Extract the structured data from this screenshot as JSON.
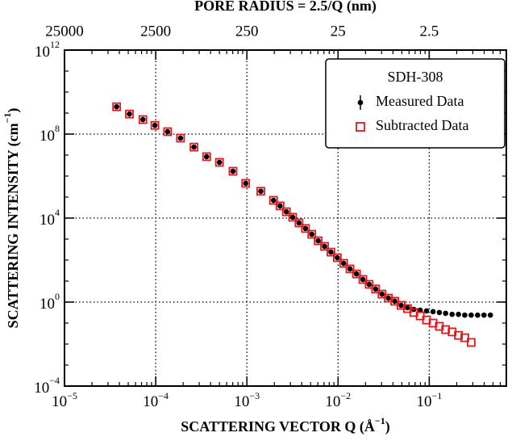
{
  "chart_data": {
    "type": "scatter",
    "title": "PORE RADIUS = 2.5/Q (nm)",
    "xlabel": [
      "SCATTERING VECTOR Q (Å",
      "−1",
      ")"
    ],
    "ylabel": [
      "SCATTERING INTENSITY (cm",
      "−1",
      ")"
    ],
    "xscale": "log",
    "yscale": "log",
    "grid": true,
    "legend": "upper right",
    "legend_title": "SDH-308",
    "xlim": [
      1e-05,
      0.7
    ],
    "xticks": [
      {
        "value": 1e-05,
        "label": "10",
        "sup": "−5"
      },
      {
        "value": 0.0001,
        "label": "10",
        "sup": "−4"
      },
      {
        "value": 0.001,
        "label": "10",
        "sup": "−3"
      },
      {
        "value": 0.01,
        "label": "10",
        "sup": "−2"
      },
      {
        "value": 0.1,
        "label": "10",
        "sup": "−1"
      }
    ],
    "x2lim": [
      25000,
      0.357
    ],
    "x2ticks": [
      25000,
      2500,
      250,
      25,
      2.5
    ],
    "ylim": [
      0.0001,
      1000000000000
    ],
    "yticks": [
      {
        "value": 0.0001,
        "label": "10",
        "sup": "−4"
      },
      {
        "value": 1,
        "label": "10",
        "sup": "0"
      },
      {
        "value": 10000,
        "label": "10",
        "sup": "4"
      },
      {
        "value": 100000000,
        "label": "10",
        "sup": "8"
      },
      {
        "value": 1000000000000,
        "label": "10",
        "sup": "12"
      }
    ],
    "series": [
      {
        "name": "Measured Data",
        "color": "#000000",
        "marker": "dot",
        "x": [
          3.73e-05,
          5.15e-05,
          7.24e-05,
          9.8e-05,
          0.000135,
          0.000187,
          0.000263,
          0.000362,
          0.0005,
          0.000704,
          0.00097,
          0.00142,
          0.00196,
          0.00231,
          0.00271,
          0.00318,
          0.00373,
          0.00439,
          0.00515,
          0.00605,
          0.00711,
          0.00835,
          0.00981,
          0.0115,
          0.0135,
          0.0159,
          0.0187,
          0.0219,
          0.0258,
          0.0303,
          0.0356,
          0.0418,
          0.0491,
          0.0577,
          0.0678,
          0.0796,
          0.0934,
          0.11,
          0.129,
          0.151,
          0.178,
          0.209,
          0.245,
          0.288,
          0.339,
          0.398,
          0.468
        ],
        "values": [
          2000000000,
          900000000,
          490000000,
          260000000,
          130000000,
          64000000,
          24000000,
          8400000,
          4500000,
          1700000,
          450000,
          190000,
          70000,
          38000,
          20000,
          11000,
          5900,
          3200,
          1700,
          830,
          450,
          240,
          130,
          70,
          38,
          22,
          12,
          7,
          4.2,
          2.4,
          1.55,
          1.1,
          0.7,
          0.54,
          0.45,
          0.41,
          0.38,
          0.35,
          0.32,
          0.29,
          0.26,
          0.26,
          0.24,
          0.24,
          0.24,
          0.24,
          0.24
        ]
      },
      {
        "name": "Subtracted Data",
        "color": "#e8161b",
        "marker": "square",
        "x": [
          3.73e-05,
          5.15e-05,
          7.24e-05,
          9.8e-05,
          0.000135,
          0.000187,
          0.000263,
          0.000362,
          0.0005,
          0.000704,
          0.00097,
          0.00142,
          0.00196,
          0.00231,
          0.00271,
          0.00318,
          0.00373,
          0.00439,
          0.00515,
          0.00605,
          0.00711,
          0.00835,
          0.00981,
          0.0115,
          0.0135,
          0.0159,
          0.0187,
          0.0219,
          0.0258,
          0.0303,
          0.0356,
          0.0418,
          0.0491,
          0.0577,
          0.0678,
          0.0796,
          0.0934,
          0.11,
          0.129,
          0.151,
          0.178,
          0.209,
          0.245,
          0.288
        ],
        "values": [
          2000000000,
          900000000,
          490000000,
          260000000,
          130000000,
          64000000,
          24000000,
          8400000,
          4500000,
          1700000,
          450000,
          190000,
          70000,
          38000,
          20000,
          11000,
          5900,
          3200,
          1700,
          830,
          450,
          240,
          130,
          70,
          38,
          22,
          12,
          7,
          4.2,
          2.4,
          1.55,
          1.1,
          0.7,
          0.49,
          0.32,
          0.22,
          0.14,
          0.1,
          0.07,
          0.049,
          0.038,
          0.026,
          0.02,
          0.012
        ]
      }
    ]
  }
}
